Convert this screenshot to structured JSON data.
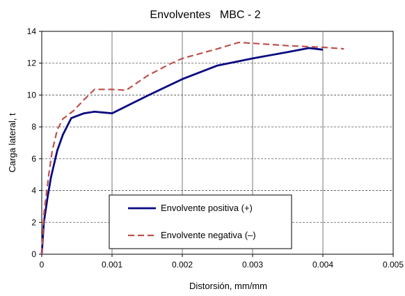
{
  "chart_data": {
    "type": "line",
    "title": "Envolventes   MBC - 2",
    "xlabel": "Distorsión, mm/mm",
    "ylabel": "Carga lateral, t",
    "xlim": [
      0,
      0.005
    ],
    "ylim": [
      0,
      14
    ],
    "x_ticks": [
      "0",
      "0.001",
      "0.002",
      "0.003",
      "0.004",
      "0.005"
    ],
    "y_ticks": [
      "0",
      "2",
      "4",
      "6",
      "8",
      "10",
      "12",
      "14"
    ],
    "grid": {
      "horizontal": "dashed",
      "vertical": "solid"
    },
    "legend_position": "bottom-center",
    "series": [
      {
        "name": "Envolvente positiva (+)",
        "color": "#0a0a80",
        "style": "solid",
        "x": [
          0,
          3e-05,
          8e-05,
          0.00013,
          0.00022,
          0.0003,
          0.00042,
          0.0006,
          0.00075,
          0.001,
          0.0015,
          0.002,
          0.0025,
          0.003,
          0.0035,
          0.0038,
          0.004
        ],
        "y": [
          0,
          2.0,
          3.5,
          4.8,
          6.5,
          7.5,
          8.55,
          8.85,
          8.95,
          8.85,
          9.95,
          11.0,
          11.85,
          12.3,
          12.7,
          12.95,
          12.85
        ]
      },
      {
        "name": "Envolvente negativa (–)",
        "color": "#c0504d",
        "style": "dashed",
        "x": [
          0,
          3e-05,
          0.0001,
          0.00015,
          0.00022,
          0.0003,
          0.00045,
          0.0006,
          0.00075,
          0.001,
          0.0012,
          0.0015,
          0.0018,
          0.002,
          0.0025,
          0.0028,
          0.003,
          0.0035,
          0.004,
          0.0043
        ],
        "y": [
          0,
          2.5,
          5.0,
          6.5,
          7.8,
          8.5,
          9.0,
          9.7,
          10.35,
          10.35,
          10.3,
          11.2,
          11.9,
          12.3,
          12.9,
          13.3,
          13.25,
          13.1,
          13.0,
          12.9
        ]
      }
    ]
  }
}
